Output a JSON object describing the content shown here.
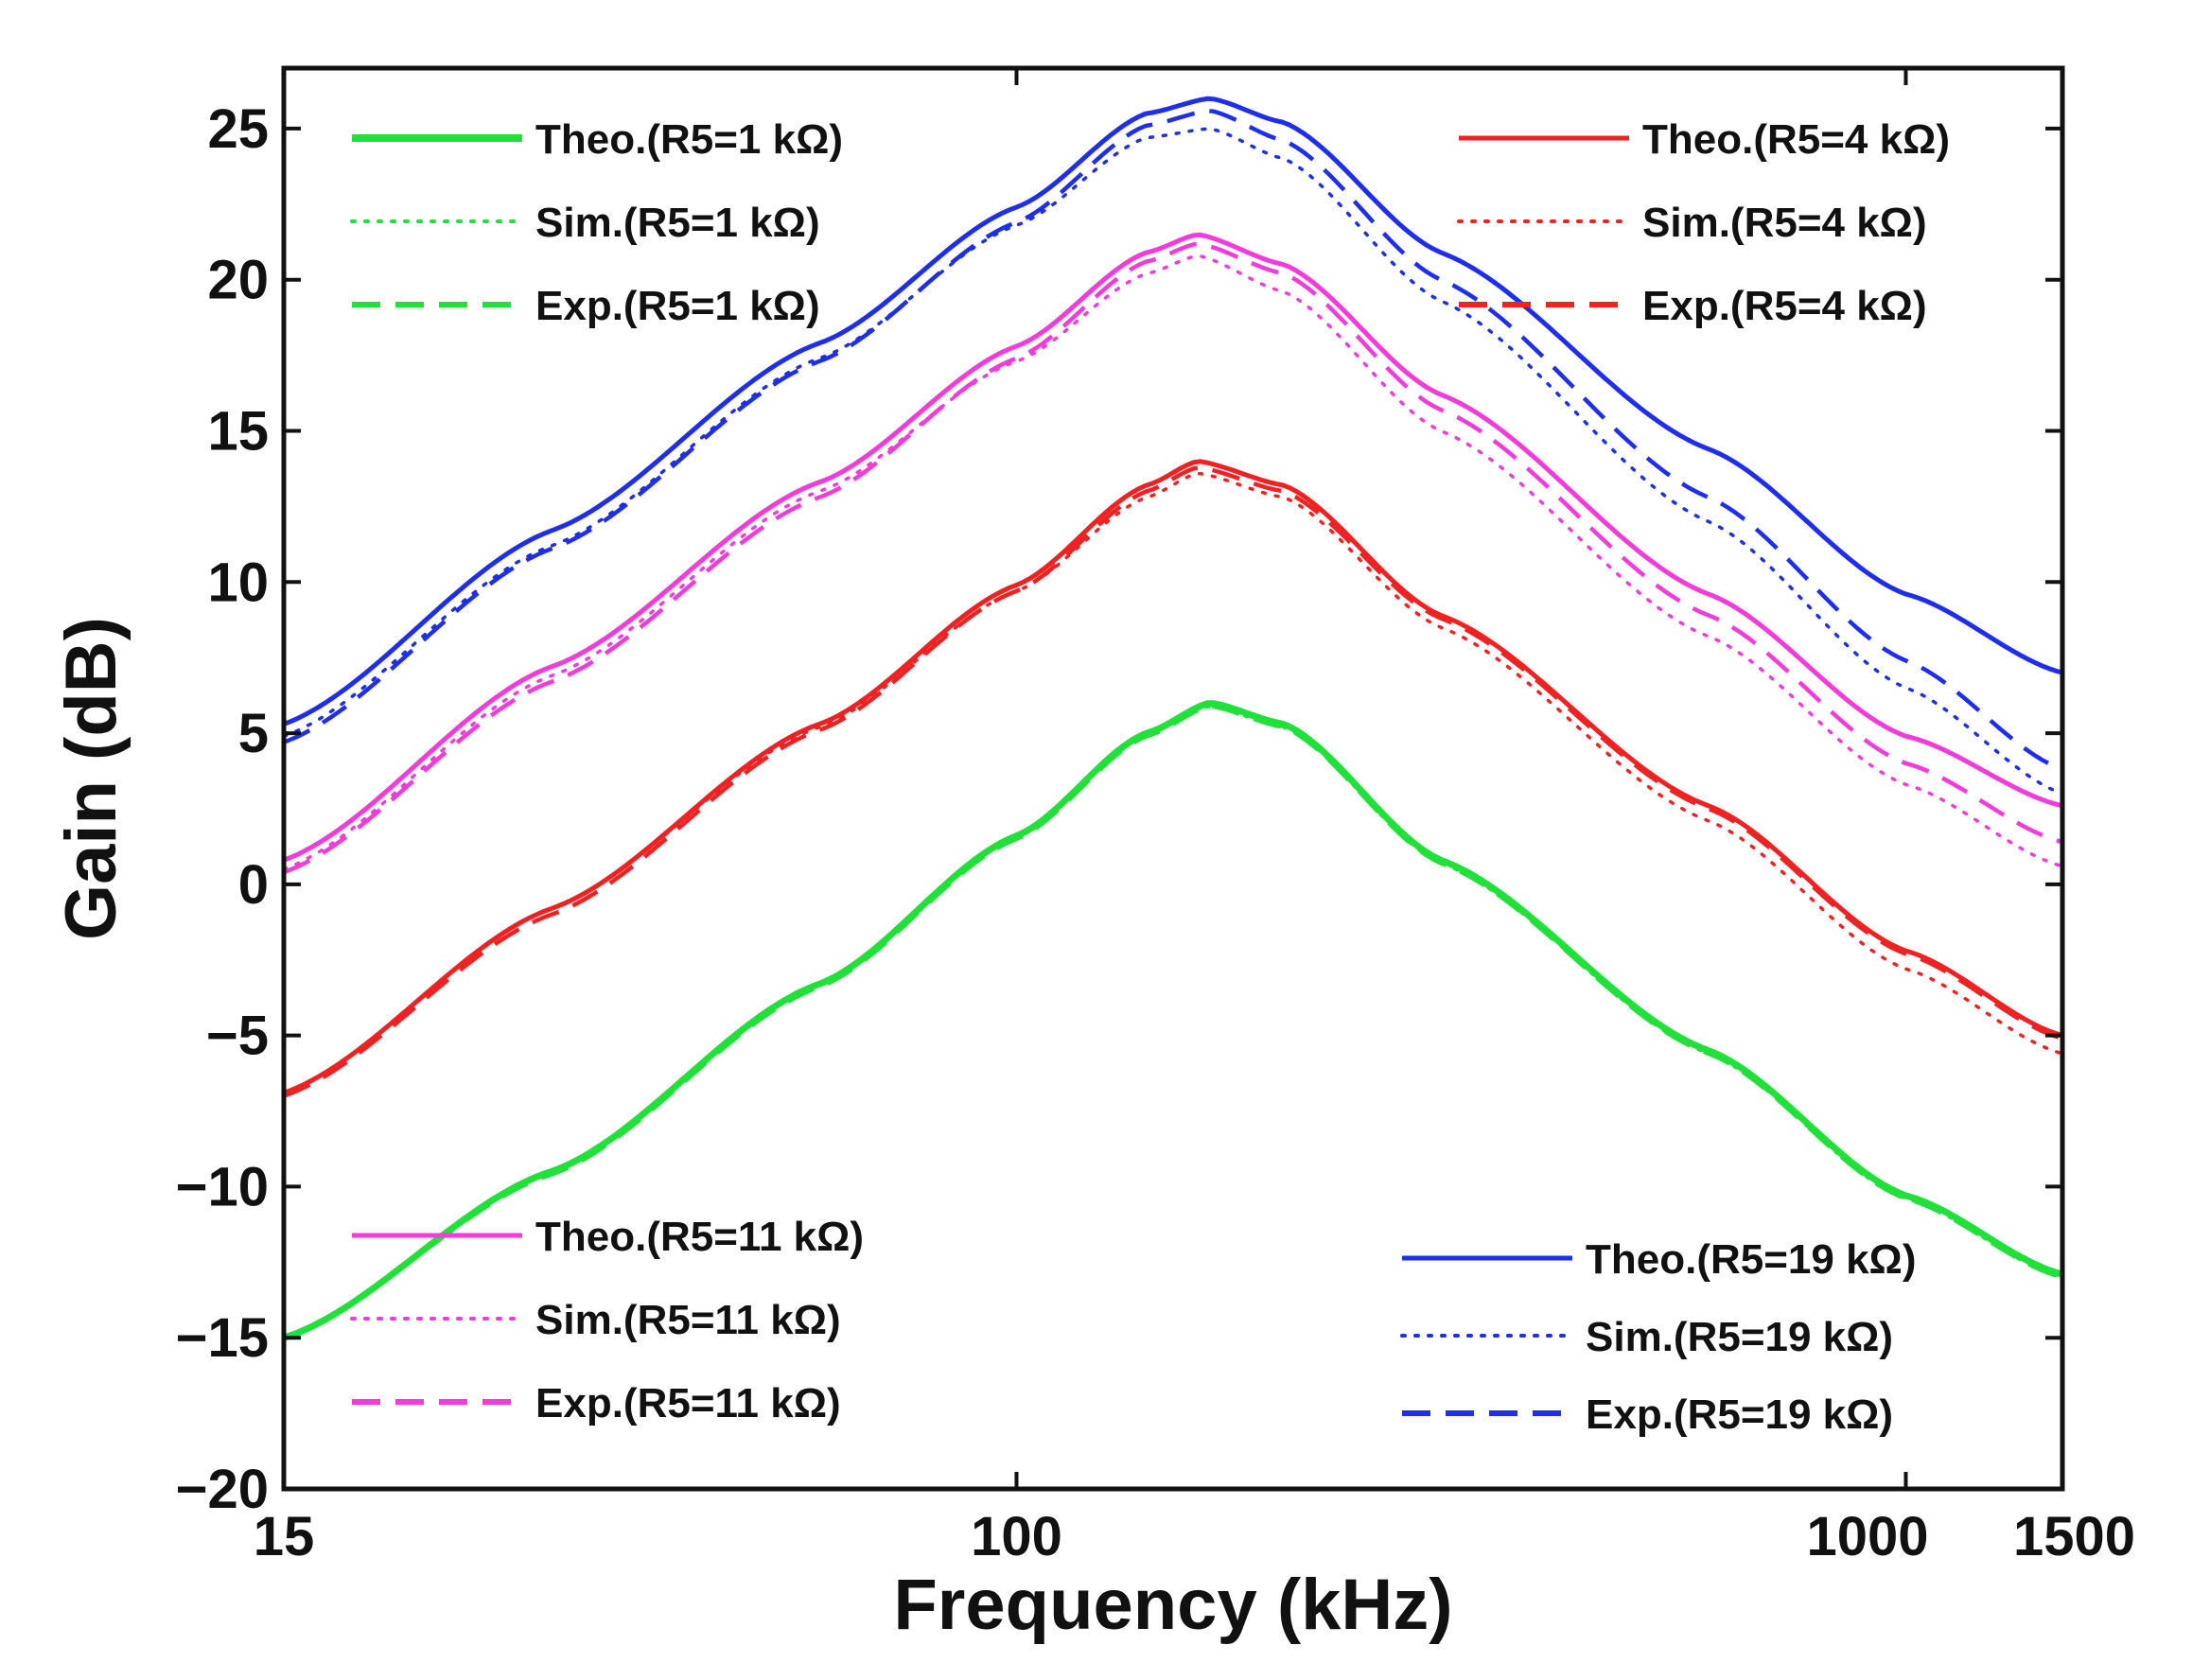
{
  "chart_data": {
    "type": "line",
    "title": "",
    "xlabel": "Frequency (kHz)",
    "ylabel": "Gain (dB)",
    "xscale": "log",
    "xlim": [
      15,
      1500
    ],
    "ylim": [
      -20,
      27
    ],
    "xticks": [
      {
        "value": 15,
        "label": "15"
      },
      {
        "value": 100,
        "label": "100"
      },
      {
        "value": 1000,
        "label": "1000"
      },
      {
        "value": 1500,
        "label": "1500"
      }
    ],
    "yticks": [
      {
        "value": 25,
        "label": "25"
      },
      {
        "value": 20,
        "label": "20"
      },
      {
        "value": 15,
        "label": "15"
      },
      {
        "value": 10,
        "label": "10"
      },
      {
        "value": 5,
        "label": "5"
      },
      {
        "value": 0,
        "label": "0"
      },
      {
        "value": -5,
        "label": "−5"
      },
      {
        "value": -10,
        "label": "−10"
      },
      {
        "value": -15,
        "label": "−15"
      },
      {
        "value": -20,
        "label": "−20"
      }
    ],
    "grid": false,
    "groups": [
      {
        "r5": "1 kΩ",
        "color": "#22e03a",
        "peak_freq": 165,
        "series": [
          {
            "name": "Theo.(R5=1 kΩ)",
            "style": "solid",
            "x": [
              15,
              30,
              60,
              100,
              140,
              165,
              200,
              300,
              600,
              1000,
              1500
            ],
            "y": [
              -15.0,
              -9.5,
              -3.3,
              1.6,
              5.0,
              6.0,
              5.3,
              0.8,
              -5.5,
              -10.3,
              -12.9
            ]
          },
          {
            "name": "Sim.(R5=1 kΩ)",
            "style": "dotted",
            "x": [
              15,
              30,
              60,
              100,
              140,
              165,
              200,
              300,
              600,
              1000,
              1500
            ],
            "y": [
              -15.0,
              -9.5,
              -3.3,
              1.6,
              5.0,
              5.9,
              5.2,
              0.7,
              -5.6,
              -10.4,
              -13.0
            ]
          },
          {
            "name": "Exp.(R5=1 kΩ)",
            "style": "dashed",
            "x": [
              15,
              30,
              60,
              100,
              140,
              165,
              200,
              300,
              600,
              1000,
              1500
            ],
            "y": [
              -15.0,
              -9.6,
              -3.4,
              1.5,
              4.9,
              5.9,
              5.2,
              0.7,
              -5.6,
              -10.4,
              -13.0
            ]
          }
        ]
      },
      {
        "r5": "4 kΩ",
        "color": "#ee2222",
        "peak_freq": 160,
        "series": [
          {
            "name": "Theo.(R5=4 kΩ)",
            "style": "solid",
            "x": [
              15,
              30,
              60,
              100,
              140,
              160,
              200,
              300,
              600,
              1000,
              1500
            ],
            "y": [
              -6.9,
              -0.8,
              5.3,
              9.9,
              13.2,
              14.0,
              13.2,
              8.9,
              2.6,
              -2.2,
              -5.0
            ]
          },
          {
            "name": "Sim.(R5=4 kΩ)",
            "style": "dotted",
            "x": [
              15,
              30,
              60,
              100,
              140,
              160,
              200,
              300,
              600,
              1000,
              1500
            ],
            "y": [
              -6.9,
              -0.8,
              5.2,
              9.7,
              12.8,
              13.6,
              12.8,
              8.5,
              2.1,
              -2.8,
              -5.6
            ]
          },
          {
            "name": "Exp.(R5=4 kΩ)",
            "style": "dashed",
            "x": [
              15,
              30,
              60,
              100,
              140,
              160,
              200,
              300,
              600,
              1000,
              1500
            ],
            "y": [
              -7.0,
              -1.0,
              5.1,
              9.7,
              13.0,
              13.8,
              13.0,
              8.8,
              2.5,
              -2.3,
              -5.1
            ]
          }
        ]
      },
      {
        "r5": "11 kΩ",
        "color": "#f03cd8",
        "peak_freq": 160,
        "series": [
          {
            "name": "Theo.(R5=11 kΩ)",
            "style": "solid",
            "x": [
              15,
              30,
              60,
              100,
              140,
              160,
              200,
              300,
              600,
              1000,
              1500
            ],
            "y": [
              0.8,
              7.2,
              13.3,
              17.8,
              20.9,
              21.5,
              20.5,
              16.2,
              9.6,
              4.9,
              2.6
            ]
          },
          {
            "name": "Sim.(R5=11 kΩ)",
            "style": "dotted",
            "x": [
              15,
              30,
              60,
              100,
              140,
              160,
              200,
              300,
              600,
              1000,
              1500
            ],
            "y": [
              0.5,
              6.9,
              13.0,
              17.3,
              20.2,
              20.8,
              19.6,
              15.0,
              8.2,
              3.3,
              0.6
            ]
          },
          {
            "name": "Exp.(R5=11 kΩ)",
            "style": "dashed",
            "x": [
              15,
              30,
              60,
              100,
              140,
              160,
              200,
              300,
              600,
              1000,
              1500
            ],
            "y": [
              0.4,
              6.7,
              12.8,
              17.4,
              20.6,
              21.2,
              20.2,
              15.7,
              8.9,
              4.0,
              1.4
            ]
          }
        ]
      },
      {
        "r5": "19 kΩ",
        "color": "#1f2ee8",
        "peak_freq": 165,
        "series": [
          {
            "name": "Theo.(R5=19 kΩ)",
            "style": "solid",
            "x": [
              15,
              30,
              60,
              100,
              140,
              165,
              200,
              300,
              600,
              1000,
              1500
            ],
            "y": [
              5.3,
              11.7,
              17.9,
              22.4,
              25.5,
              26.0,
              25.2,
              20.9,
              14.4,
              9.6,
              7.0
            ]
          },
          {
            "name": "Sim.(R5=19 kΩ)",
            "style": "dotted",
            "x": [
              15,
              30,
              60,
              100,
              140,
              165,
              200,
              300,
              600,
              1000,
              1500
            ],
            "y": [
              4.9,
              11.2,
              17.4,
              21.8,
              24.7,
              25.0,
              24.0,
              19.3,
              12.0,
              6.5,
              3.0
            ]
          },
          {
            "name": "Exp.(R5=19 kΩ)",
            "style": "dashed",
            "x": [
              15,
              30,
              60,
              100,
              140,
              165,
              200,
              300,
              600,
              1000,
              1500
            ],
            "y": [
              4.7,
              11.1,
              17.3,
              21.9,
              25.1,
              25.6,
              24.6,
              20.0,
              12.8,
              7.4,
              3.8
            ]
          }
        ]
      }
    ],
    "legend": [
      {
        "position": "top-left",
        "group": 0
      },
      {
        "position": "top-right",
        "group": 1
      },
      {
        "position": "bottom-left",
        "group": 2
      },
      {
        "position": "bottom-right",
        "group": 3
      }
    ]
  }
}
